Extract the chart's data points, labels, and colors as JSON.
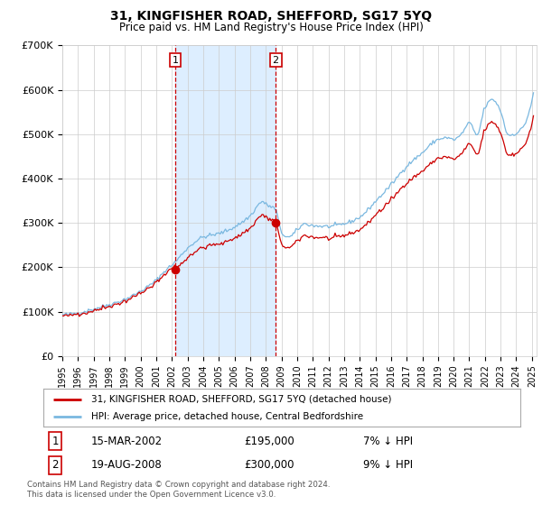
{
  "title1": "31, KINGFISHER ROAD, SHEFFORD, SG17 5YQ",
  "title2": "Price paid vs. HM Land Registry's House Price Index (HPI)",
  "legend_line1": "31, KINGFISHER ROAD, SHEFFORD, SG17 5YQ (detached house)",
  "legend_line2": "HPI: Average price, detached house, Central Bedfordshire",
  "footnote": "Contains HM Land Registry data © Crown copyright and database right 2024.\nThis data is licensed under the Open Government Licence v3.0.",
  "sale1_date": "15-MAR-2002",
  "sale1_price": 195000,
  "sale1_note": "7% ↓ HPI",
  "sale2_date": "19-AUG-2008",
  "sale2_price": 300000,
  "sale2_note": "9% ↓ HPI",
  "sale1_x": 2002.21,
  "sale2_x": 2008.63,
  "ylim": [
    0,
    700000
  ],
  "yticks": [
    0,
    100000,
    200000,
    300000,
    400000,
    500000,
    600000,
    700000
  ],
  "ytick_labels": [
    "£0",
    "£100K",
    "£200K",
    "£300K",
    "£400K",
    "£500K",
    "£600K",
    "£700K"
  ],
  "hpi_color": "#7ab8e0",
  "price_color": "#cc0000",
  "shade_color": "#ddeeff",
  "dashed_color": "#cc0000",
  "grid_color": "#cccccc",
  "bg_color": "#ffffff"
}
